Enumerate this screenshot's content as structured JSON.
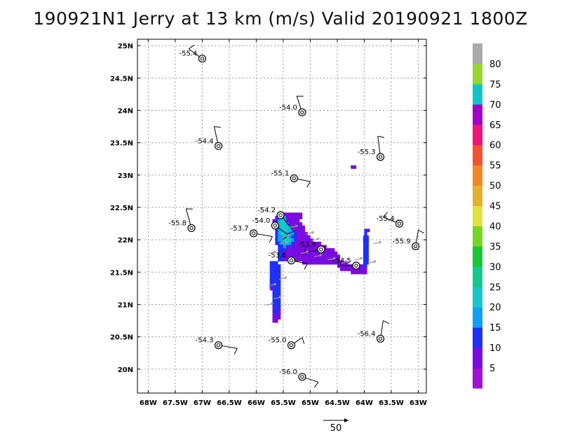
{
  "title": "190921N1 Jerry at 13 km (m/s) Valid 20190921 1800Z",
  "chart_data": {
    "type": "heatmap",
    "title": "190921N1 Jerry at 13 km (m/s) Valid 20190921 1800Z",
    "xlim": [
      -68.2,
      -62.85
    ],
    "ylim": [
      19.63,
      25.1
    ],
    "x_ticks": [
      -68,
      -67.5,
      -67,
      -66.5,
      -66,
      -65.5,
      -65,
      -64.5,
      -64,
      -63.5,
      -63
    ],
    "x_tick_labels": [
      "68W",
      "67.5W",
      "67W",
      "66.5W",
      "66W",
      "65.5W",
      "65W",
      "64.5W",
      "64W",
      "63.5W",
      "63W"
    ],
    "y_ticks": [
      20,
      20.5,
      21,
      21.5,
      22,
      22.5,
      23,
      23.5,
      24,
      24.5,
      25
    ],
    "y_tick_labels": [
      "20N",
      "20.5N",
      "21N",
      "21.5N",
      "22N",
      "22.5N",
      "23N",
      "23.5N",
      "24N",
      "24.5N",
      "25N"
    ],
    "grid": true,
    "colorbar": {
      "levels": [
        0,
        5,
        10,
        15,
        20,
        25,
        30,
        35,
        40,
        45,
        50,
        55,
        60,
        65,
        70,
        75,
        80,
        85
      ],
      "tick_labels": [
        "5",
        "10",
        "15",
        "20",
        "25",
        "30",
        "35",
        "40",
        "45",
        "50",
        "55",
        "60",
        "65",
        "70",
        "75",
        "80"
      ],
      "colors": [
        "#a010d8",
        "#7a0be2",
        "#2030f5",
        "#0fa0f5",
        "#18c8c8",
        "#14c890",
        "#18c838",
        "#7ad424",
        "#e0e040",
        "#e4b030",
        "#f08828",
        "#f45034",
        "#f01478",
        "#a000c8",
        "#12c4c8",
        "#96d830",
        "#aaaaaa"
      ]
    },
    "observations": [
      {
        "lon": -67.0,
        "lat": 24.8,
        "label": "-55.4",
        "barb": [
          -0.25,
          0.15
        ]
      },
      {
        "lon": -65.15,
        "lat": 23.97,
        "label": "-54.0",
        "barb": [
          -0.1,
          0.25
        ]
      },
      {
        "lon": -66.7,
        "lat": 23.45,
        "label": "-54.4",
        "barb": [
          -0.08,
          0.3
        ]
      },
      {
        "lon": -63.7,
        "lat": 23.28,
        "label": "-55.3",
        "barb": [
          -0.05,
          0.32
        ]
      },
      {
        "lon": -65.3,
        "lat": 22.95,
        "label": "-55.1",
        "barb": [
          0.3,
          -0.05
        ]
      },
      {
        "lon": -67.2,
        "lat": 22.18,
        "label": "-55.8",
        "barb": [
          -0.1,
          0.3
        ]
      },
      {
        "lon": -65.55,
        "lat": 22.38,
        "label": "-54.2",
        "barb": [
          0.25,
          -0.25
        ]
      },
      {
        "lon": -65.65,
        "lat": 22.22,
        "label": "-54.0",
        "barb": [
          0.25,
          -0.15
        ]
      },
      {
        "lon": -66.05,
        "lat": 22.1,
        "label": "-53.7",
        "barb": [
          0.35,
          -0.05
        ]
      },
      {
        "lon": -63.35,
        "lat": 22.25,
        "label": "-55.4",
        "barb": [
          -0.3,
          0.1
        ]
      },
      {
        "lon": -63.05,
        "lat": 21.9,
        "label": "-55.9",
        "barb": [
          0.05,
          0.25
        ]
      },
      {
        "lon": -64.8,
        "lat": 21.85,
        "label": "-53.9",
        "barb": [
          -0.3,
          -0.05
        ]
      },
      {
        "lon": -65.35,
        "lat": 21.68,
        "label": "-53.6",
        "barb": [
          0.3,
          -0.05
        ]
      },
      {
        "lon": -64.15,
        "lat": 21.6,
        "label": "-54.5",
        "barb": [
          -0.3,
          0.0
        ]
      },
      {
        "lon": -66.7,
        "lat": 20.37,
        "label": "-54.3",
        "barb": [
          0.35,
          -0.05
        ]
      },
      {
        "lon": -65.35,
        "lat": 20.37,
        "label": "-55.0",
        "barb": [
          0.2,
          0.12
        ]
      },
      {
        "lon": -63.7,
        "lat": 20.47,
        "label": "-56.4",
        "barb": [
          0.05,
          0.28
        ]
      },
      {
        "lon": -65.15,
        "lat": 19.88,
        "label": "-56.0",
        "barb": [
          0.3,
          -0.08
        ]
      }
    ],
    "wind_field": [
      {
        "lon": -65.58,
        "lat": 22.42,
        "rows": [
          [
            5,
            5,
            5,
            5,
            5,
            5,
            5,
            5,
            5,
            5,
            5,
            5
          ]
        ]
      },
      {
        "lon": -65.58,
        "lat": 22.32,
        "rows": [
          [
            10,
            15,
            15,
            20,
            5,
            5,
            5,
            5,
            5,
            5,
            5,
            5
          ]
        ]
      },
      {
        "lon": -65.58,
        "lat": 22.22,
        "rows": [
          [
            10,
            20,
            20,
            20,
            15,
            5,
            5,
            5,
            5,
            5,
            5,
            5
          ]
        ]
      },
      {
        "lon": -65.58,
        "lat": 22.12,
        "rows": [
          [
            10,
            15,
            20,
            20,
            20,
            15,
            5,
            5,
            5,
            5,
            5,
            5
          ]
        ]
      },
      {
        "lon": -65.58,
        "lat": 22.02,
        "rows": [
          [
            10,
            15,
            20,
            20,
            15,
            15,
            10,
            5,
            5,
            5,
            5,
            5
          ]
        ]
      },
      {
        "lon": -65.58,
        "lat": 21.92,
        "rows": [
          [
            10,
            10,
            15,
            20,
            15,
            15,
            15,
            10,
            5,
            5,
            5,
            5
          ]
        ]
      },
      {
        "lon": -65.58,
        "lat": 21.82,
        "rows": [
          [
            10,
            10,
            15,
            15,
            5,
            5,
            5,
            5,
            5,
            5,
            5,
            5
          ]
        ]
      },
      {
        "lon": -65.58,
        "lat": 21.72,
        "rows": [
          [
            10,
            10,
            10,
            10,
            5,
            5,
            5,
            5,
            5,
            5,
            5,
            5
          ]
        ]
      }
    ],
    "vector_scale": {
      "label": "50"
    }
  }
}
